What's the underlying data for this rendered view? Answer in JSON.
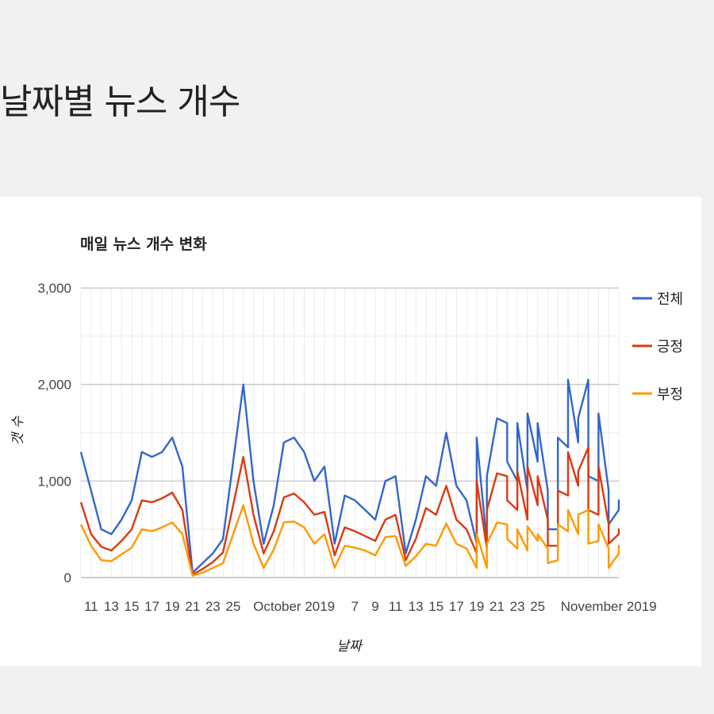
{
  "page": {
    "title": "날짜별 뉴스 개수"
  },
  "colors": {
    "total": "#3366cc",
    "positive": "#dc3912",
    "negative": "#ff9900",
    "grid": "#cccccc",
    "minorGrid": "#ebebeb"
  },
  "chart_data": {
    "type": "line",
    "title": "매일 뉴스 개수 변화",
    "xlabel": "날짜",
    "ylabel": "갯 수",
    "ylim": [
      0,
      3000
    ],
    "yticks": [
      "0",
      "1,000",
      "2,000",
      "3,000"
    ],
    "xticks": [
      {
        "x": "2019-09-11",
        "label": "11"
      },
      {
        "x": "2019-09-13",
        "label": "13"
      },
      {
        "x": "2019-09-15",
        "label": "15"
      },
      {
        "x": "2019-09-17",
        "label": "17"
      },
      {
        "x": "2019-09-19",
        "label": "19"
      },
      {
        "x": "2019-09-21",
        "label": "21"
      },
      {
        "x": "2019-09-23",
        "label": "23"
      },
      {
        "x": "2019-09-25",
        "label": "25"
      },
      {
        "x": "2019-10-01",
        "label": "October 2019"
      },
      {
        "x": "2019-10-07",
        "label": "7"
      },
      {
        "x": "2019-10-09",
        "label": "9"
      },
      {
        "x": "2019-10-11",
        "label": "11"
      },
      {
        "x": "2019-10-13",
        "label": "13"
      },
      {
        "x": "2019-10-15",
        "label": "15"
      },
      {
        "x": "2019-10-17",
        "label": "17"
      },
      {
        "x": "2019-10-19",
        "label": "19"
      },
      {
        "x": "2019-10-21",
        "label": "21"
      },
      {
        "x": "2019-10-23",
        "label": "23"
      },
      {
        "x": "2019-10-25",
        "label": "25"
      },
      {
        "x": "2019-11-01",
        "label": "November 2019"
      }
    ],
    "xlim": [
      "2019-09-10",
      "2019-11-02"
    ],
    "legend_position": "right",
    "series": [
      {
        "name": "전체",
        "color": "#3366cc",
        "points": [
          [
            "2019-09-10",
            1300
          ],
          [
            "2019-09-11",
            900
          ],
          [
            "2019-09-12",
            500
          ],
          [
            "2019-09-13",
            450
          ],
          [
            "2019-09-14",
            600
          ],
          [
            "2019-09-15",
            800
          ],
          [
            "2019-09-16",
            1300
          ],
          [
            "2019-09-17",
            1250
          ],
          [
            "2019-09-18",
            1300
          ],
          [
            "2019-09-19",
            1450
          ],
          [
            "2019-09-20",
            1150
          ],
          [
            "2019-09-21",
            50
          ],
          [
            "2019-09-22",
            150
          ],
          [
            "2019-09-23",
            250
          ],
          [
            "2019-09-24",
            400
          ],
          [
            "2019-09-25",
            1200
          ],
          [
            "2019-09-26",
            2000
          ],
          [
            "2019-09-27",
            1000
          ],
          [
            "2019-09-28",
            350
          ],
          [
            "2019-09-29",
            750
          ],
          [
            "2019-09-30",
            1400
          ],
          [
            "2019-10-01",
            1450
          ],
          [
            "2019-10-02",
            1300
          ],
          [
            "2019-10-03",
            1000
          ],
          [
            "2019-10-04",
            1150
          ],
          [
            "2019-10-05",
            350
          ],
          [
            "2019-10-06",
            850
          ],
          [
            "2019-10-07",
            800
          ],
          [
            "2019-10-08",
            700
          ],
          [
            "2019-10-09",
            600
          ],
          [
            "2019-10-10",
            1000
          ],
          [
            "2019-10-11",
            1050
          ],
          [
            "2019-10-12",
            250
          ],
          [
            "2019-10-13",
            600
          ],
          [
            "2019-10-14",
            1050
          ],
          [
            "2019-10-15",
            950
          ],
          [
            "2019-10-16",
            1500
          ],
          [
            "2019-10-17",
            950
          ],
          [
            "2019-10-18",
            800
          ],
          [
            "2019-10-19",
            350
          ],
          [
            "2019-10-19",
            1450
          ],
          [
            "2019-10-20",
            350
          ],
          [
            "2019-10-20",
            1050
          ],
          [
            "2019-10-21",
            1650
          ],
          [
            "2019-10-21",
            1650
          ],
          [
            "2019-10-22",
            1600
          ],
          [
            "2019-10-22",
            1200
          ],
          [
            "2019-10-23",
            1000
          ],
          [
            "2019-10-23",
            1600
          ],
          [
            "2019-10-24",
            900
          ],
          [
            "2019-10-24",
            1700
          ],
          [
            "2019-10-25",
            1200
          ],
          [
            "2019-10-25",
            1600
          ],
          [
            "2019-10-26",
            900
          ],
          [
            "2019-10-26",
            500
          ],
          [
            "2019-10-27",
            500
          ],
          [
            "2019-10-27",
            1450
          ],
          [
            "2019-10-28",
            1350
          ],
          [
            "2019-10-28",
            2050
          ],
          [
            "2019-10-29",
            1400
          ],
          [
            "2019-10-29",
            1650
          ],
          [
            "2019-10-30",
            2050
          ],
          [
            "2019-10-30",
            1050
          ],
          [
            "2019-10-31",
            1000
          ],
          [
            "2019-10-31",
            1700
          ],
          [
            "2019-11-01",
            900
          ],
          [
            "2019-11-01",
            550
          ],
          [
            "2019-11-02",
            700
          ],
          [
            "2019-11-02",
            800
          ],
          [
            "2019-11-02",
            700
          ]
        ]
      },
      {
        "name": "긍정",
        "color": "#dc3912",
        "points": [
          [
            "2019-09-10",
            780
          ],
          [
            "2019-09-11",
            450
          ],
          [
            "2019-09-12",
            320
          ],
          [
            "2019-09-13",
            280
          ],
          [
            "2019-09-14",
            380
          ],
          [
            "2019-09-15",
            500
          ],
          [
            "2019-09-16",
            800
          ],
          [
            "2019-09-17",
            780
          ],
          [
            "2019-09-18",
            820
          ],
          [
            "2019-09-19",
            880
          ],
          [
            "2019-09-20",
            700
          ],
          [
            "2019-09-21",
            30
          ],
          [
            "2019-09-22",
            90
          ],
          [
            "2019-09-23",
            160
          ],
          [
            "2019-09-24",
            260
          ],
          [
            "2019-09-25",
            750
          ],
          [
            "2019-09-26",
            1250
          ],
          [
            "2019-09-27",
            650
          ],
          [
            "2019-09-28",
            250
          ],
          [
            "2019-09-29",
            480
          ],
          [
            "2019-09-30",
            830
          ],
          [
            "2019-10-01",
            870
          ],
          [
            "2019-10-02",
            780
          ],
          [
            "2019-10-03",
            650
          ],
          [
            "2019-10-04",
            680
          ],
          [
            "2019-10-05",
            230
          ],
          [
            "2019-10-06",
            520
          ],
          [
            "2019-10-07",
            480
          ],
          [
            "2019-10-08",
            430
          ],
          [
            "2019-10-09",
            380
          ],
          [
            "2019-10-10",
            600
          ],
          [
            "2019-10-11",
            650
          ],
          [
            "2019-10-12",
            180
          ],
          [
            "2019-10-13",
            400
          ],
          [
            "2019-10-14",
            720
          ],
          [
            "2019-10-15",
            650
          ],
          [
            "2019-10-16",
            950
          ],
          [
            "2019-10-17",
            600
          ],
          [
            "2019-10-18",
            500
          ],
          [
            "2019-10-19",
            250
          ],
          [
            "2019-10-19",
            1000
          ],
          [
            "2019-10-20",
            300
          ],
          [
            "2019-10-20",
            700
          ],
          [
            "2019-10-21",
            1080
          ],
          [
            "2019-10-21",
            1080
          ],
          [
            "2019-10-22",
            1050
          ],
          [
            "2019-10-22",
            800
          ],
          [
            "2019-10-23",
            700
          ],
          [
            "2019-10-23",
            1100
          ],
          [
            "2019-10-24",
            600
          ],
          [
            "2019-10-24",
            1150
          ],
          [
            "2019-10-25",
            750
          ],
          [
            "2019-10-25",
            1050
          ],
          [
            "2019-10-26",
            600
          ],
          [
            "2019-10-26",
            330
          ],
          [
            "2019-10-27",
            330
          ],
          [
            "2019-10-27",
            900
          ],
          [
            "2019-10-28",
            850
          ],
          [
            "2019-10-28",
            1300
          ],
          [
            "2019-10-29",
            950
          ],
          [
            "2019-10-29",
            1100
          ],
          [
            "2019-10-30",
            1350
          ],
          [
            "2019-10-30",
            700
          ],
          [
            "2019-10-31",
            650
          ],
          [
            "2019-10-31",
            1150
          ],
          [
            "2019-11-01",
            550
          ],
          [
            "2019-11-01",
            350
          ],
          [
            "2019-11-02",
            450
          ],
          [
            "2019-11-02",
            500
          ],
          [
            "2019-11-02",
            450
          ]
        ]
      },
      {
        "name": "부정",
        "color": "#ff9900",
        "points": [
          [
            "2019-09-10",
            550
          ],
          [
            "2019-09-11",
            330
          ],
          [
            "2019-09-12",
            180
          ],
          [
            "2019-09-13",
            170
          ],
          [
            "2019-09-14",
            240
          ],
          [
            "2019-09-15",
            310
          ],
          [
            "2019-09-16",
            500
          ],
          [
            "2019-09-17",
            480
          ],
          [
            "2019-09-18",
            520
          ],
          [
            "2019-09-19",
            570
          ],
          [
            "2019-09-20",
            450
          ],
          [
            "2019-09-21",
            20
          ],
          [
            "2019-09-22",
            50
          ],
          [
            "2019-09-23",
            100
          ],
          [
            "2019-09-24",
            150
          ],
          [
            "2019-09-25",
            450
          ],
          [
            "2019-09-26",
            750
          ],
          [
            "2019-09-27",
            350
          ],
          [
            "2019-09-28",
            100
          ],
          [
            "2019-09-29",
            290
          ],
          [
            "2019-09-30",
            570
          ],
          [
            "2019-10-01",
            580
          ],
          [
            "2019-10-02",
            520
          ],
          [
            "2019-10-03",
            350
          ],
          [
            "2019-10-04",
            450
          ],
          [
            "2019-10-05",
            100
          ],
          [
            "2019-10-06",
            330
          ],
          [
            "2019-10-07",
            310
          ],
          [
            "2019-10-08",
            280
          ],
          [
            "2019-10-09",
            230
          ],
          [
            "2019-10-10",
            420
          ],
          [
            "2019-10-11",
            430
          ],
          [
            "2019-10-12",
            120
          ],
          [
            "2019-10-13",
            220
          ],
          [
            "2019-10-14",
            350
          ],
          [
            "2019-10-15",
            330
          ],
          [
            "2019-10-16",
            560
          ],
          [
            "2019-10-17",
            350
          ],
          [
            "2019-10-18",
            300
          ],
          [
            "2019-10-19",
            100
          ],
          [
            "2019-10-19",
            450
          ],
          [
            "2019-10-20",
            100
          ],
          [
            "2019-10-20",
            350
          ],
          [
            "2019-10-21",
            570
          ],
          [
            "2019-10-21",
            570
          ],
          [
            "2019-10-22",
            550
          ],
          [
            "2019-10-22",
            400
          ],
          [
            "2019-10-23",
            300
          ],
          [
            "2019-10-23",
            500
          ],
          [
            "2019-10-24",
            280
          ],
          [
            "2019-10-24",
            530
          ],
          [
            "2019-10-25",
            380
          ],
          [
            "2019-10-25",
            450
          ],
          [
            "2019-10-26",
            300
          ],
          [
            "2019-10-26",
            150
          ],
          [
            "2019-10-27",
            180
          ],
          [
            "2019-10-27",
            550
          ],
          [
            "2019-10-28",
            480
          ],
          [
            "2019-10-28",
            700
          ],
          [
            "2019-10-29",
            450
          ],
          [
            "2019-10-29",
            650
          ],
          [
            "2019-10-30",
            700
          ],
          [
            "2019-10-30",
            350
          ],
          [
            "2019-10-31",
            380
          ],
          [
            "2019-10-31",
            550
          ],
          [
            "2019-11-01",
            300
          ],
          [
            "2019-11-01",
            100
          ],
          [
            "2019-11-02",
            250
          ],
          [
            "2019-11-02",
            330
          ],
          [
            "2019-11-02",
            280
          ]
        ]
      }
    ]
  }
}
